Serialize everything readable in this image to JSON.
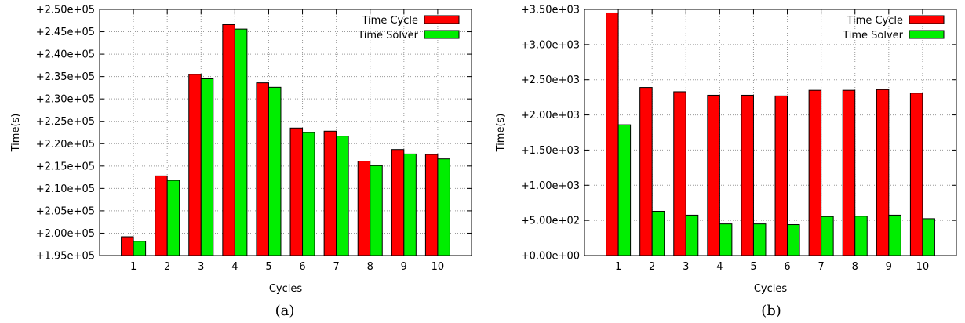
{
  "chart_data": [
    {
      "type": "bar",
      "caption": "(a)",
      "xlabel": "Cycles",
      "ylabel": "Time(s)",
      "categories": [
        "1",
        "2",
        "3",
        "4",
        "5",
        "6",
        "7",
        "8",
        "9",
        "10"
      ],
      "ylim": [
        195000,
        250000
      ],
      "yticks": [
        195000,
        200000,
        205000,
        210000,
        215000,
        220000,
        225000,
        230000,
        235000,
        240000,
        245000,
        250000
      ],
      "ytick_labels": [
        "+1.95e+05",
        "+2.00e+05",
        "+2.05e+05",
        "+2.10e+05",
        "+2.15e+05",
        "+2.20e+05",
        "+2.25e+05",
        "+2.30e+05",
        "+2.35e+05",
        "+2.40e+05",
        "+2.45e+05",
        "+2.50e+05"
      ],
      "grid": true,
      "legend_position": "top-right",
      "series": [
        {
          "name": "Time Cycle",
          "color": "#ff0000",
          "values": [
            199200,
            212800,
            235500,
            246600,
            233600,
            223500,
            222800,
            216100,
            218700,
            217600
          ]
        },
        {
          "name": "Time Solver",
          "color": "#00ee00",
          "values": [
            198200,
            211800,
            234500,
            245600,
            232600,
            222500,
            221700,
            215100,
            217700,
            216600
          ]
        }
      ]
    },
    {
      "type": "bar",
      "caption": "(b)",
      "xlabel": "Cycles",
      "ylabel": "Time(s)",
      "categories": [
        "1",
        "2",
        "3",
        "4",
        "5",
        "6",
        "7",
        "8",
        "9",
        "10"
      ],
      "ylim": [
        0,
        3500
      ],
      "yticks": [
        0,
        500,
        1000,
        1500,
        2000,
        2500,
        3000,
        3500
      ],
      "ytick_labels": [
        "+0.00e+00",
        "+5.00e+02",
        "+1.00e+03",
        "+1.50e+03",
        "+2.00e+03",
        "+2.50e+03",
        "+3.00e+03",
        "+3.50e+03"
      ],
      "grid": true,
      "legend_position": "top-right",
      "series": [
        {
          "name": "Time Cycle",
          "color": "#ff0000",
          "values": [
            3450,
            2390,
            2330,
            2280,
            2280,
            2270,
            2350,
            2350,
            2360,
            2310
          ]
        },
        {
          "name": "Time Solver",
          "color": "#00ee00",
          "values": [
            1860,
            630,
            575,
            450,
            450,
            440,
            555,
            560,
            575,
            525
          ]
        }
      ]
    }
  ]
}
